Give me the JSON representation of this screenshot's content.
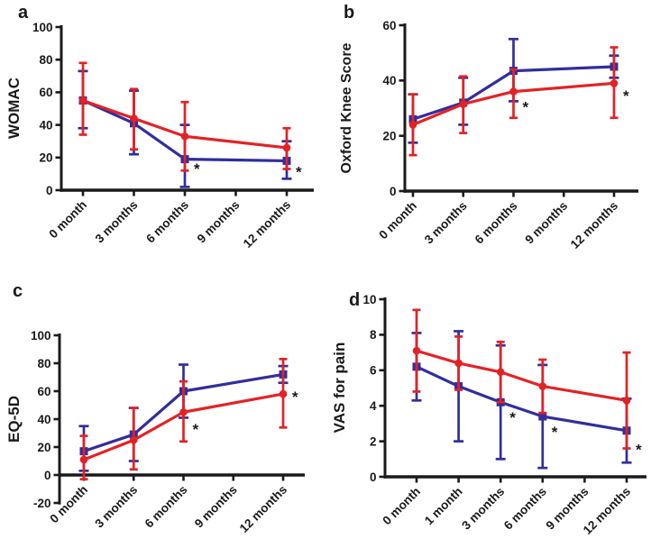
{
  "figure": {
    "background": "#ffffff",
    "axis_color": "#1a1a1a",
    "series_colors": {
      "blue": "#322e9c",
      "red": "#e32226"
    }
  },
  "chart_data": [
    {
      "panel_label": "a",
      "type": "line",
      "ylabel": "WOMAC",
      "xlabel": "",
      "ylim": [
        0,
        100
      ],
      "yticks": [
        0,
        20,
        40,
        60,
        80,
        100
      ],
      "grid": false,
      "legend": false,
      "categories": [
        "0 month",
        "3 months",
        "6 months",
        "9 months",
        "12 months"
      ],
      "series": [
        {
          "name": "blue",
          "color": "#322e9c",
          "marker": "square",
          "x_index": [
            0,
            1,
            2,
            4
          ],
          "values": [
            55,
            41,
            19,
            18
          ],
          "err_low": [
            38,
            22,
            2,
            7
          ],
          "err_high": [
            73,
            61,
            40,
            30
          ]
        },
        {
          "name": "red",
          "color": "#e32226",
          "marker": "circle",
          "x_index": [
            0,
            1,
            2,
            4
          ],
          "values": [
            55,
            44,
            33,
            26
          ],
          "err_low": [
            34,
            25,
            12,
            13
          ],
          "err_high": [
            78,
            62,
            54,
            38
          ]
        }
      ],
      "significance_marks": [
        {
          "category_index": 2,
          "y": 15,
          "label": "*"
        },
        {
          "category_index": 4,
          "y": 13,
          "label": "*"
        }
      ]
    },
    {
      "panel_label": "b",
      "type": "line",
      "ylabel": "Oxford Knee Score",
      "xlabel": "",
      "ylim": [
        0,
        60
      ],
      "yticks": [
        0,
        20,
        40,
        60
      ],
      "grid": false,
      "legend": false,
      "categories": [
        "0 month",
        "3 months",
        "6 months",
        "9 months",
        "12 months"
      ],
      "series": [
        {
          "name": "blue",
          "color": "#322e9c",
          "marker": "square",
          "x_index": [
            0,
            1,
            2,
            4
          ],
          "values": [
            26,
            32,
            43.5,
            45
          ],
          "err_low": [
            17.5,
            24,
            32.5,
            41
          ],
          "err_high": [
            35,
            41,
            55,
            49
          ]
        },
        {
          "name": "red",
          "color": "#e32226",
          "marker": "circle",
          "x_index": [
            0,
            1,
            2,
            4
          ],
          "values": [
            24,
            31.5,
            36,
            39
          ],
          "err_low": [
            13,
            21,
            26.5,
            26.5
          ],
          "err_high": [
            35,
            41.5,
            44,
            52
          ]
        }
      ],
      "significance_marks": [
        {
          "category_index": 2,
          "y": 31.5,
          "label": "*"
        },
        {
          "category_index": 4,
          "y": 35.5,
          "label": "*"
        }
      ]
    },
    {
      "panel_label": "c",
      "type": "line",
      "ylabel": "EQ-5D",
      "xlabel": "",
      "ylim": [
        -20,
        100
      ],
      "yticks": [
        -20,
        0,
        20,
        40,
        60,
        80,
        100
      ],
      "x_axis_at": 0,
      "grid": false,
      "legend": false,
      "categories": [
        "0 month",
        "3 months",
        "6 months",
        "9 months",
        "12 months"
      ],
      "series": [
        {
          "name": "blue",
          "color": "#322e9c",
          "marker": "square",
          "x_index": [
            0,
            1,
            2,
            4
          ],
          "values": [
            17,
            29,
            60,
            72
          ],
          "err_low": [
            3,
            10,
            41,
            66
          ],
          "err_high": [
            35,
            48,
            79,
            78
          ]
        },
        {
          "name": "red",
          "color": "#e32226",
          "marker": "circle",
          "x_index": [
            0,
            1,
            2,
            4
          ],
          "values": [
            11,
            25,
            45,
            58
          ],
          "err_low": [
            -3,
            4,
            24,
            34
          ],
          "err_high": [
            28,
            48,
            67,
            83
          ]
        }
      ],
      "significance_marks": [
        {
          "category_index": 2,
          "y": 35,
          "label": "*"
        },
        {
          "category_index": 4,
          "y": 58,
          "label": "*"
        }
      ]
    },
    {
      "panel_label": "d",
      "type": "line",
      "ylabel": "VAS for pain",
      "xlabel": "",
      "ylim": [
        0,
        10
      ],
      "yticks": [
        0,
        2,
        4,
        6,
        8,
        10
      ],
      "grid": false,
      "legend": false,
      "categories": [
        "0 month",
        "1 month",
        "3 months",
        "6 months",
        "9 months",
        "12 months"
      ],
      "series": [
        {
          "name": "blue",
          "color": "#322e9c",
          "marker": "square",
          "x_index": [
            0,
            1,
            2,
            3,
            5
          ],
          "values": [
            6.2,
            5.1,
            4.2,
            3.4,
            2.6
          ],
          "err_low": [
            4.3,
            2.0,
            1.0,
            0.5,
            0.8
          ],
          "err_high": [
            8.1,
            8.2,
            7.4,
            6.3,
            4.4
          ]
        },
        {
          "name": "red",
          "color": "#e32226",
          "marker": "circle",
          "x_index": [
            0,
            1,
            2,
            3,
            5
          ],
          "values": [
            7.1,
            6.4,
            5.9,
            5.1,
            4.3
          ],
          "err_low": [
            4.8,
            4.9,
            4.2,
            3.6,
            1.6
          ],
          "err_high": [
            9.4,
            7.9,
            7.6,
            6.6,
            7.0
          ]
        }
      ],
      "significance_marks": [
        {
          "category_index": 2,
          "y": 3.5,
          "label": "*"
        },
        {
          "category_index": 3,
          "y": 2.7,
          "label": "*"
        },
        {
          "category_index": 5,
          "y": 1.7,
          "label": "*"
        }
      ]
    }
  ]
}
